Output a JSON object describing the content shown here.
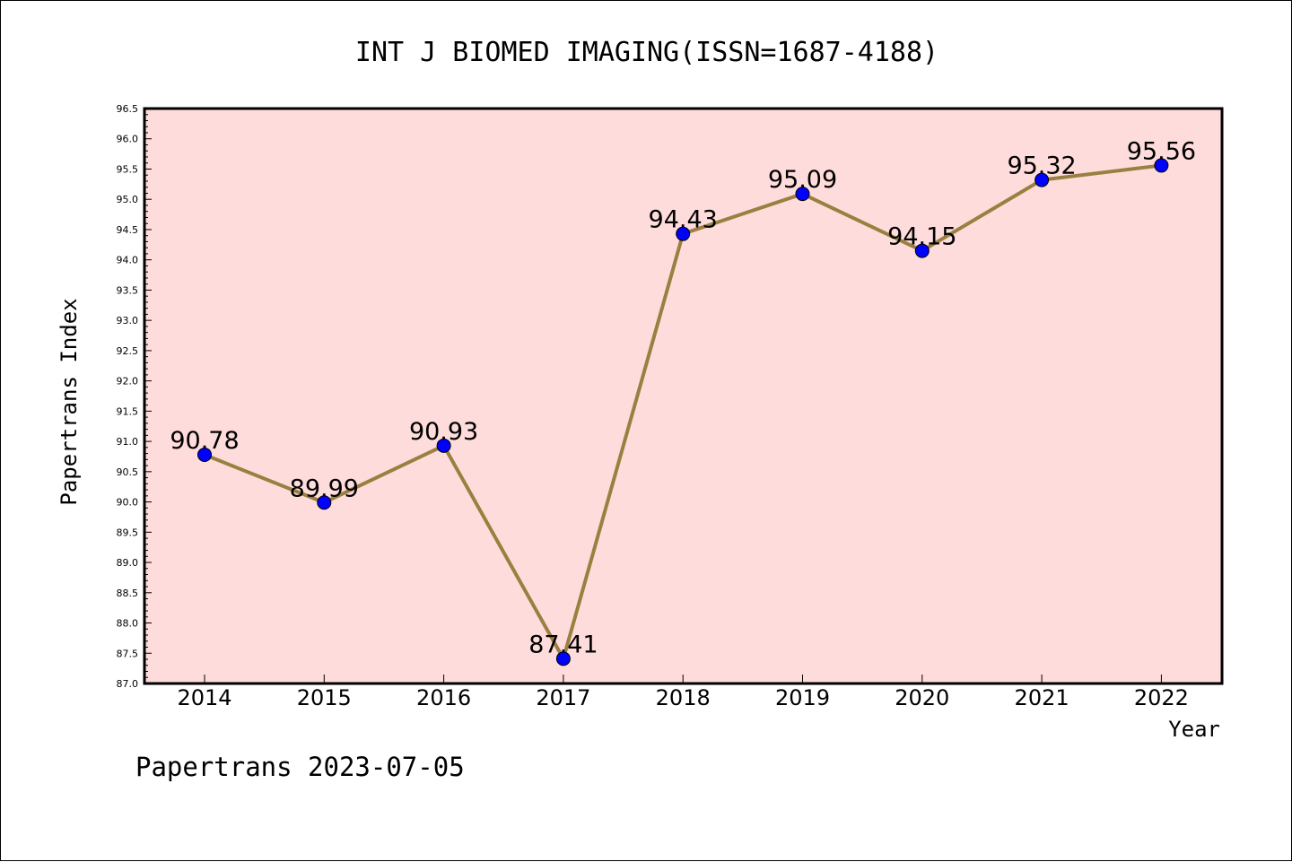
{
  "chart_data": {
    "type": "line",
    "title": "INT J BIOMED IMAGING(ISSN=1687-4188)",
    "xlabel": "Year",
    "ylabel": "Papertrans Index",
    "categories": [
      "2014",
      "2015",
      "2016",
      "2017",
      "2018",
      "2019",
      "2020",
      "2021",
      "2022"
    ],
    "series": [
      {
        "values": [
          90.78,
          89.99,
          90.93,
          87.41,
          94.43,
          95.09,
          94.15,
          95.32,
          95.56
        ],
        "labels": [
          "90.78",
          "89.99",
          "90.93",
          "87.41",
          "94.43",
          "95.09",
          "94.15",
          "95.32",
          "95.56"
        ]
      }
    ],
    "ylim": [
      87.0,
      96.5
    ],
    "yticks": [
      "87.0",
      "87.5",
      "88.0",
      "88.5",
      "89.0",
      "89.5",
      "90.0",
      "90.5",
      "91.0",
      "91.5",
      "92.0",
      "92.5",
      "93.0",
      "93.5",
      "94.0",
      "94.5",
      "95.0",
      "95.5",
      "96.0",
      "96.5"
    ],
    "grid": false,
    "colors": {
      "plot_background": "#ffdcdc",
      "line": "#9a8040",
      "marker": "#0000ff"
    }
  },
  "footer": "Papertrans 2023-07-05"
}
